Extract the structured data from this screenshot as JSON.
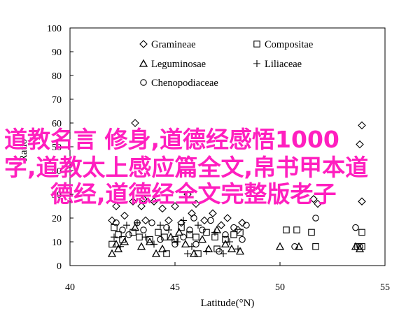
{
  "chart_data": {
    "type": "scatter",
    "xlabel": "Latitude(°N)",
    "ylabel": "Ratio",
    "xlim": [
      40,
      55
    ],
    "ylim": [
      0,
      100
    ],
    "xticks": [
      40,
      45,
      50,
      55
    ],
    "yticks": [
      0,
      10,
      20,
      30,
      40,
      50,
      60,
      70,
      80,
      90,
      100
    ],
    "grid": false,
    "legend_position": "top-left",
    "series": [
      {
        "name": "Gramineae",
        "marker": "diamond",
        "points": [
          [
            42.0,
            19
          ],
          [
            42.2,
            25
          ],
          [
            42.6,
            21
          ],
          [
            43.0,
            27
          ],
          [
            43.1,
            60
          ],
          [
            43.4,
            25
          ],
          [
            43.6,
            19
          ],
          [
            44.0,
            27
          ],
          [
            44.4,
            24
          ],
          [
            44.7,
            19
          ],
          [
            45.0,
            25
          ],
          [
            45.3,
            18
          ],
          [
            45.8,
            22
          ],
          [
            46.0,
            26
          ],
          [
            46.4,
            19
          ],
          [
            46.8,
            22
          ],
          [
            47.2,
            17
          ],
          [
            47.5,
            20
          ],
          [
            48.0,
            15
          ],
          [
            48.2,
            18
          ],
          [
            53.9,
            59
          ],
          [
            53.8,
            51
          ],
          [
            53.9,
            27
          ],
          [
            51.8,
            26
          ],
          [
            51.6,
            28
          ],
          [
            43.5,
            28
          ],
          [
            45.6,
            30
          ]
        ]
      },
      {
        "name": "Compositae",
        "marker": "square",
        "points": [
          [
            42.1,
            16
          ],
          [
            42.3,
            13
          ],
          [
            42.5,
            11
          ],
          [
            43.0,
            14
          ],
          [
            43.3,
            12
          ],
          [
            43.8,
            11
          ],
          [
            44.2,
            14
          ],
          [
            44.5,
            12
          ],
          [
            45.0,
            11
          ],
          [
            45.3,
            16
          ],
          [
            45.7,
            13
          ],
          [
            46.0,
            12
          ],
          [
            46.5,
            14
          ],
          [
            46.9,
            12
          ],
          [
            47.4,
            11
          ],
          [
            47.8,
            13
          ],
          [
            48.1,
            14
          ],
          [
            50.3,
            15
          ],
          [
            50.8,
            15
          ],
          [
            51.5,
            14
          ],
          [
            51.7,
            8
          ],
          [
            53.9,
            14
          ],
          [
            53.7,
            8
          ],
          [
            53.9,
            8
          ],
          [
            42.0,
            9
          ],
          [
            44.6,
            5
          ],
          [
            46.1,
            5
          ],
          [
            47.0,
            7
          ]
        ]
      },
      {
        "name": "Leguminosae",
        "marker": "triangle",
        "points": [
          [
            42.0,
            5
          ],
          [
            42.3,
            7
          ],
          [
            42.6,
            10
          ],
          [
            43.1,
            16
          ],
          [
            43.4,
            8
          ],
          [
            43.8,
            10
          ],
          [
            44.1,
            5
          ],
          [
            44.4,
            7
          ],
          [
            44.8,
            12
          ],
          [
            45.2,
            14
          ],
          [
            45.5,
            9
          ],
          [
            45.9,
            5
          ],
          [
            46.3,
            11
          ],
          [
            46.6,
            7
          ],
          [
            47.0,
            15
          ],
          [
            47.4,
            9
          ],
          [
            47.7,
            7
          ],
          [
            48.1,
            6
          ],
          [
            50.0,
            8
          ],
          [
            50.9,
            8
          ],
          [
            53.6,
            8
          ],
          [
            53.8,
            7
          ],
          [
            42.2,
            9
          ]
        ]
      },
      {
        "name": "Liliaceae",
        "marker": "plus",
        "points": [
          [
            42.1,
            12
          ],
          [
            42.4,
            8
          ],
          [
            42.7,
            17
          ],
          [
            43.2,
            18
          ],
          [
            43.6,
            12
          ],
          [
            44.0,
            9
          ],
          [
            44.3,
            17
          ],
          [
            44.7,
            15
          ],
          [
            45.1,
            10
          ],
          [
            45.4,
            19
          ],
          [
            45.8,
            8
          ],
          [
            46.1,
            17
          ],
          [
            46.5,
            6
          ],
          [
            46.9,
            14
          ],
          [
            47.3,
            5
          ],
          [
            47.6,
            10
          ],
          [
            48.0,
            7
          ],
          [
            45.6,
            5
          ]
        ]
      },
      {
        "name": "Chenopodiaceae",
        "marker": "circle",
        "points": [
          [
            42.2,
            18
          ],
          [
            42.5,
            15
          ],
          [
            42.8,
            13
          ],
          [
            43.2,
            18
          ],
          [
            43.5,
            15
          ],
          [
            43.9,
            18
          ],
          [
            44.3,
            11
          ],
          [
            44.6,
            16
          ],
          [
            45.0,
            9
          ],
          [
            45.4,
            12
          ],
          [
            45.7,
            15
          ],
          [
            46.0,
            9
          ],
          [
            46.3,
            15
          ],
          [
            46.7,
            19
          ],
          [
            47.1,
            6
          ],
          [
            47.4,
            13
          ],
          [
            47.8,
            16
          ],
          [
            48.2,
            11
          ],
          [
            48.4,
            17
          ],
          [
            50.7,
            8
          ],
          [
            51.7,
            20
          ],
          [
            53.6,
            16
          ],
          [
            53.8,
            8
          ],
          [
            45.9,
            20
          ]
        ]
      }
    ]
  },
  "overlay": {
    "line1": "道教名言 修身,道德经感悟1000",
    "line2": "字,道教太上感应篇全文,帛书甲本道",
    "line3": "德经,道德经全文完整版老子",
    "color": "#ff1fbf"
  }
}
